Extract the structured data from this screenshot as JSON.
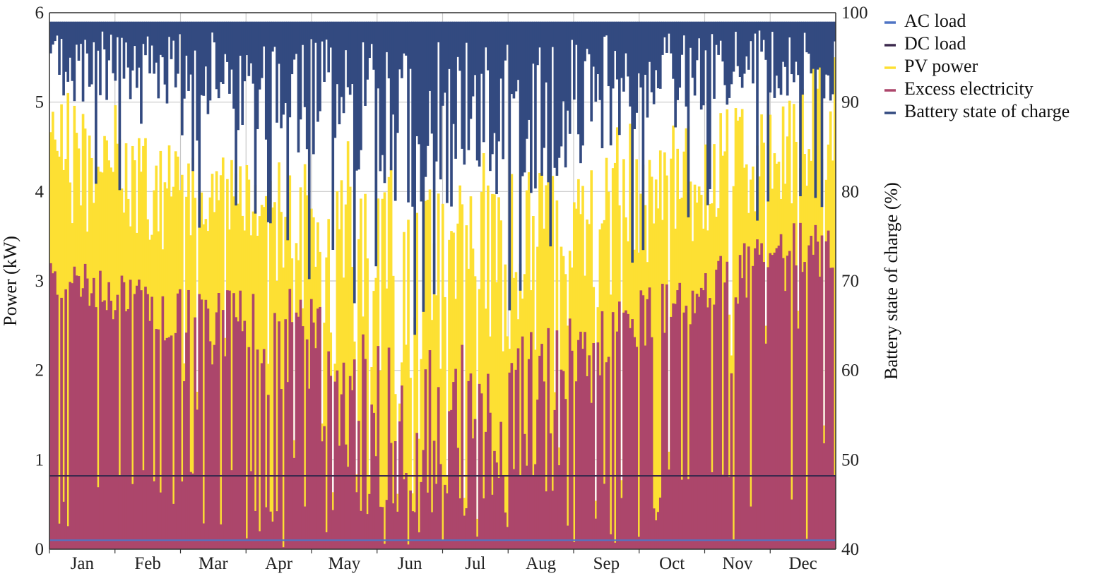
{
  "chart_data": {
    "type": "area",
    "title": "",
    "xlabel": "",
    "ylabel": "Power (kW)",
    "ylabel_right": "Battery state of charge (%)",
    "ylim": [
      0,
      6
    ],
    "ylim_right": [
      40,
      100
    ],
    "yticks": [
      "0",
      "1",
      "2",
      "3",
      "4",
      "5",
      "6"
    ],
    "yticks_right": [
      "40",
      "50",
      "60",
      "70",
      "80",
      "90",
      "100"
    ],
    "categories": [
      "Jan",
      "Feb",
      "Mar",
      "Apr",
      "May",
      "Jun",
      "Jul",
      "Aug",
      "Sep",
      "Oct",
      "Nov",
      "Dec"
    ],
    "grid": true,
    "legend_position": "top-right outside",
    "series": [
      {
        "name": "AC load",
        "color": "#4f74c4",
        "axis": "left",
        "constant": 0.1
      },
      {
        "name": "DC load",
        "color": "#3d2a4e",
        "axis": "left",
        "constant": 0.82
      },
      {
        "name": "PV power",
        "color": "#fde033",
        "axis": "left",
        "monthly_typical_peak": [
          5.0,
          4.6,
          4.5,
          4.3,
          4.2,
          4.0,
          4.1,
          4.3,
          4.4,
          4.7,
          5.0,
          5.2
        ],
        "monthly_typical_low": [
          3.5,
          3.3,
          3.1,
          2.8,
          1.8,
          0.9,
          1.6,
          2.2,
          2.6,
          3.3,
          3.4,
          3.6
        ]
      },
      {
        "name": "Excess electricity",
        "color": "#ac466b",
        "axis": "left",
        "monthly_typical_peak": [
          3.2,
          3.0,
          2.9,
          3.0,
          2.6,
          2.2,
          2.4,
          2.5,
          2.8,
          3.0,
          3.4,
          3.7
        ],
        "monthly_typical_low": [
          2.6,
          2.4,
          2.0,
          1.6,
          0.8,
          0.2,
          0.5,
          0.8,
          1.8,
          2.4,
          2.6,
          2.9
        ]
      },
      {
        "name": "Battery state of charge",
        "color": "#334a80",
        "axis": "right",
        "monthly_typical_max": [
          99,
          99,
          99,
          99,
          99,
          99,
          99,
          99,
          99,
          99,
          99,
          99
        ],
        "monthly_typical_min": [
          90,
          90,
          87,
          85,
          82,
          78,
          78,
          80,
          84,
          88,
          90,
          90
        ]
      }
    ]
  }
}
